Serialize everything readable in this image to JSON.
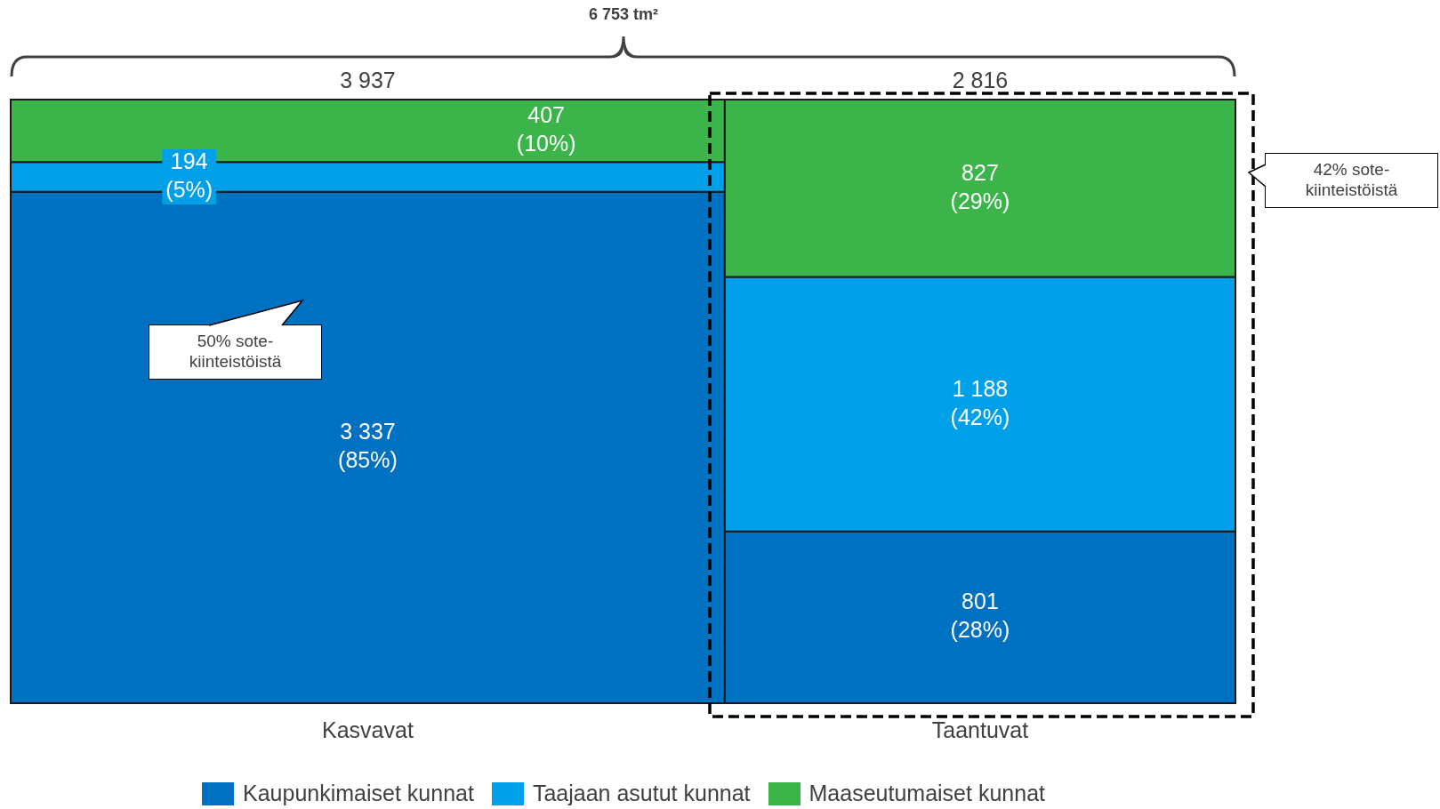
{
  "chart_data": {
    "type": "other",
    "title": "6 753 tm²",
    "categories": [
      "Kasvavat",
      "Taantuvat"
    ],
    "totals": [
      "3 937",
      "2 816"
    ],
    "series": [
      {
        "name": "Kaupunkimaiset kunnat",
        "color": "#0070c0",
        "values": [
          3337,
          801
        ],
        "value_labels": [
          "3 337 (85%)",
          "801 (28%)"
        ]
      },
      {
        "name": "Taajaan asutut kunnat",
        "color": "#00a0e8",
        "values": [
          194,
          1188
        ],
        "value_labels": [
          "194 (5%)",
          "1 188 (42%)"
        ]
      },
      {
        "name": "Maaseutumaiset kunnat",
        "color": "#3bb54a",
        "values": [
          407,
          827
        ],
        "value_labels": [
          "407 (10%)",
          "827 (29%)"
        ]
      }
    ],
    "legend": "bottom",
    "annotations": [
      "50% sote-kiinteistöistä",
      "42% sote-kiinteistöistä"
    ]
  }
}
